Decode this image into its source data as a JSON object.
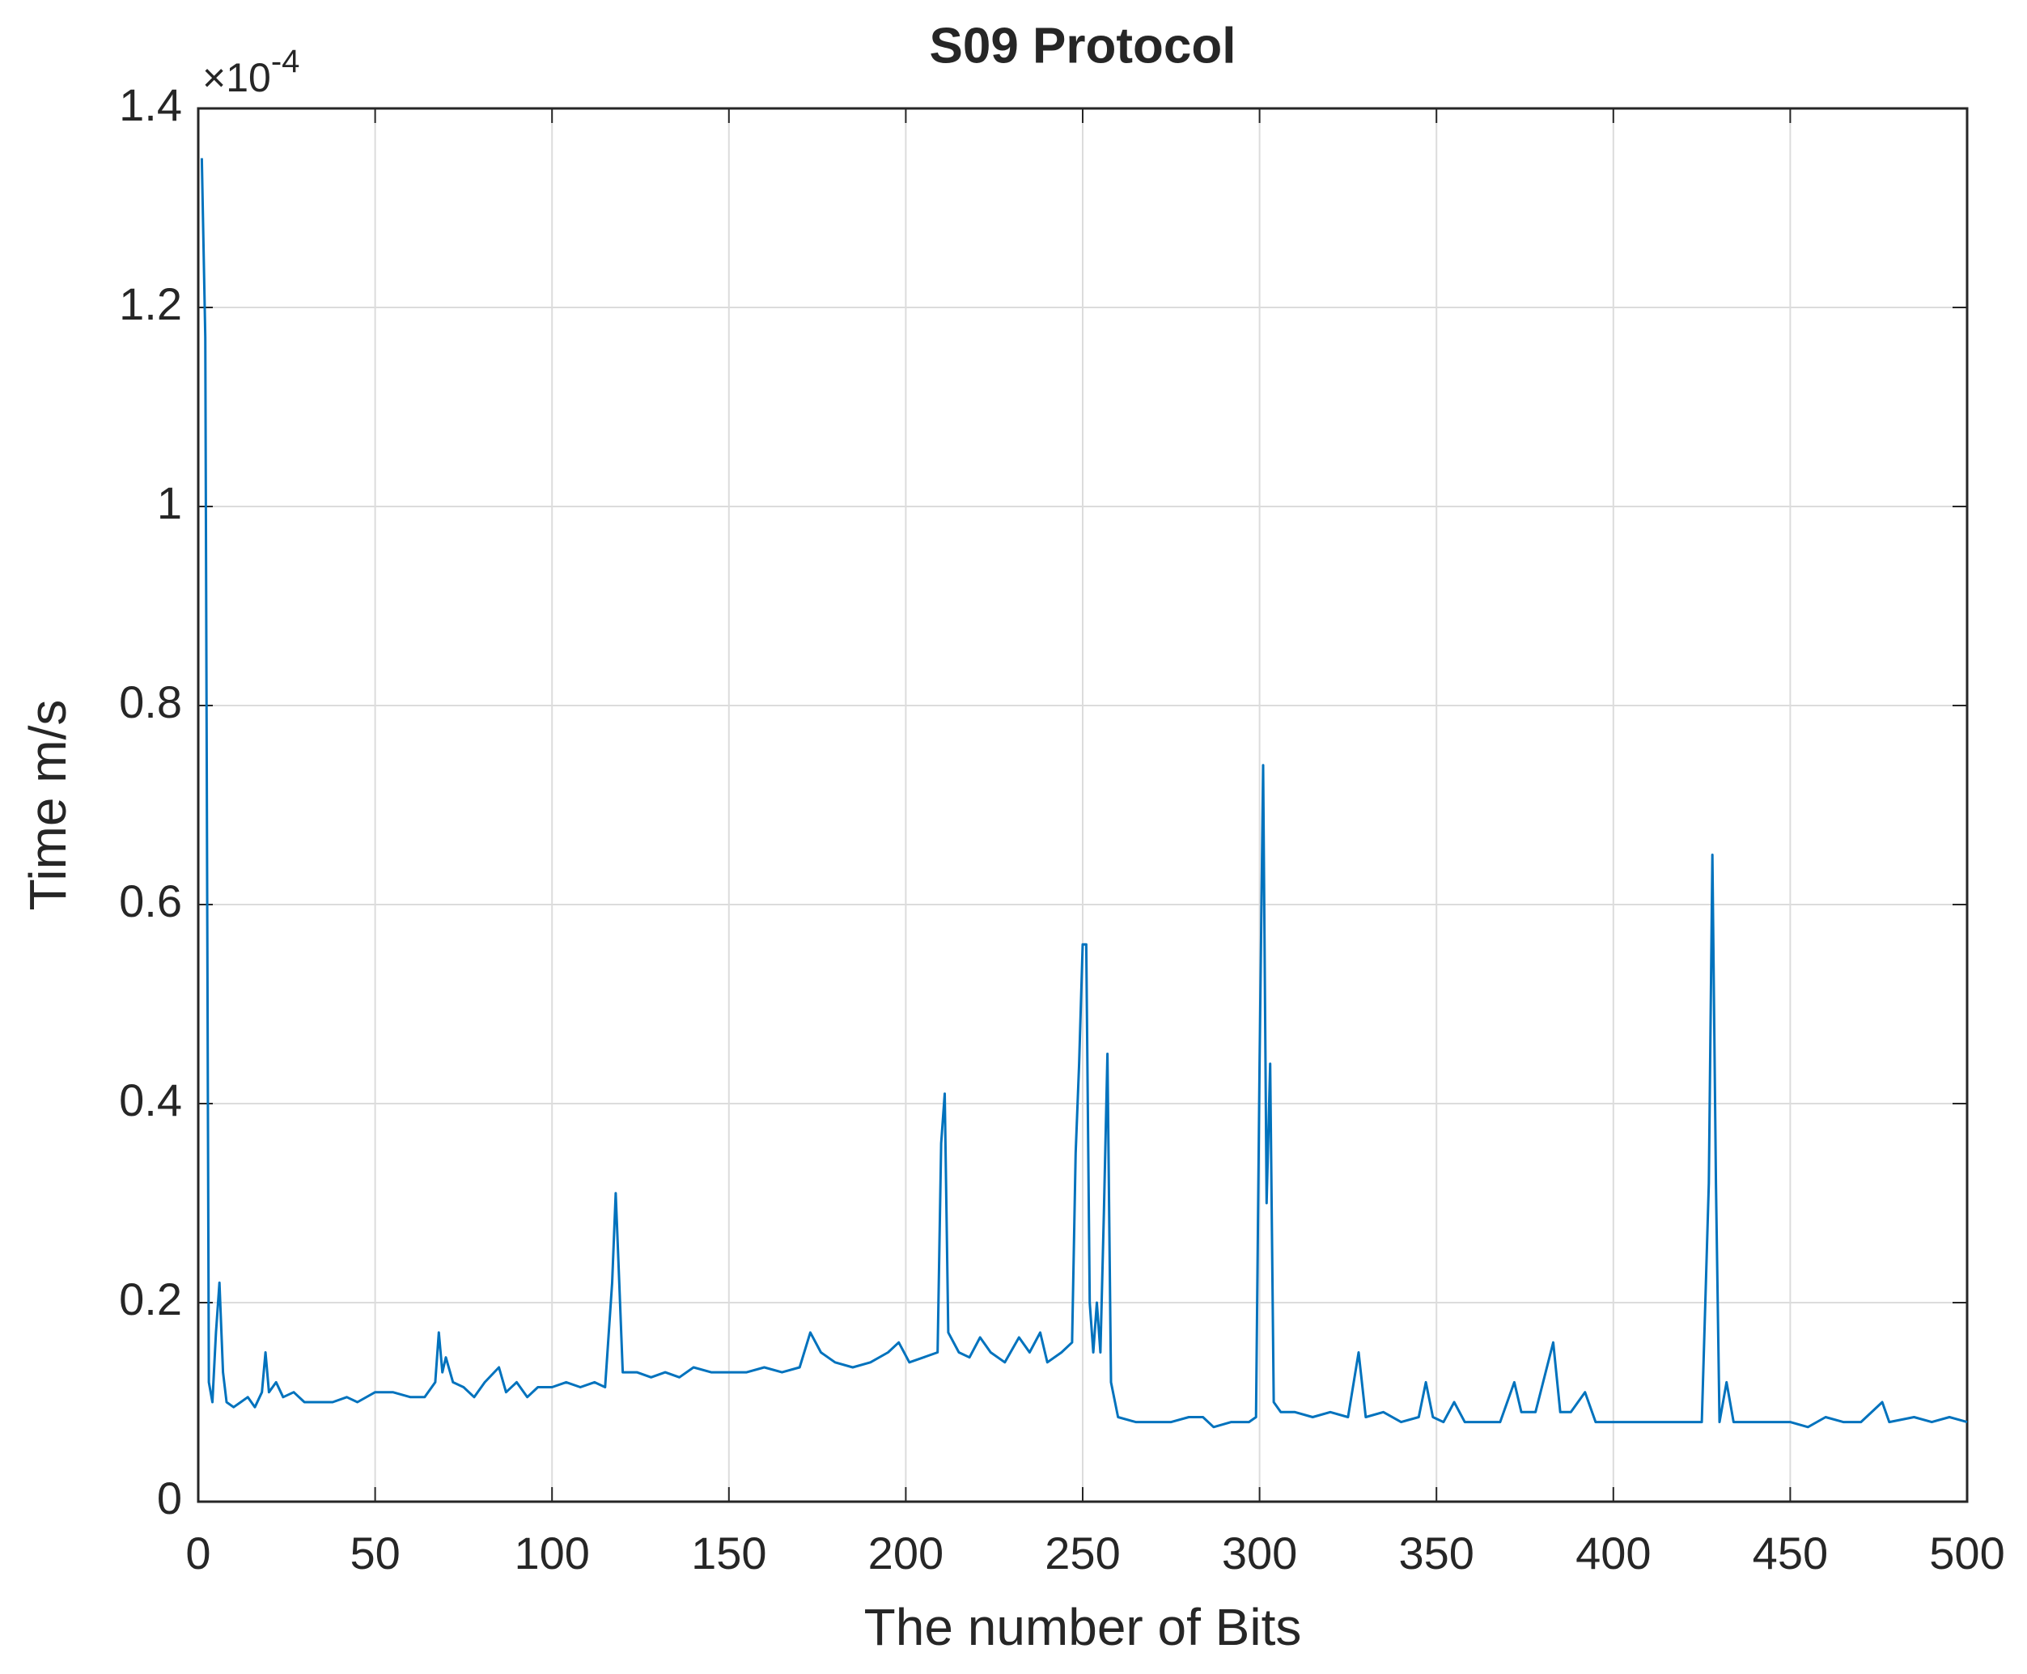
{
  "chart_data": {
    "type": "line",
    "title": "S09 Protocol",
    "x_label": "The number of Bits",
    "y_label": "Time m/s",
    "y_multiplier": {
      "base": "×10",
      "exponent": "-4"
    },
    "xlim": [
      0,
      500
    ],
    "xticks": [
      0,
      50,
      100,
      150,
      200,
      250,
      300,
      350,
      400,
      450,
      500
    ],
    "ylim": [
      0,
      1.4
    ],
    "yticks": [
      0,
      0.2,
      0.4,
      0.6,
      0.8,
      1,
      1.2,
      1.4
    ],
    "grid": true,
    "x": [
      1,
      2,
      3,
      4,
      5,
      6,
      7,
      8,
      10,
      12,
      14,
      16,
      18,
      19,
      20,
      22,
      24,
      27,
      30,
      34,
      38,
      42,
      45,
      50,
      55,
      60,
      64,
      67,
      68,
      69,
      70,
      72,
      75,
      78,
      81,
      85,
      87,
      90,
      93,
      96,
      100,
      104,
      108,
      112,
      115,
      117,
      118,
      119,
      120,
      124,
      128,
      132,
      136,
      140,
      145,
      150,
      155,
      160,
      165,
      170,
      173,
      176,
      180,
      185,
      190,
      195,
      198,
      201,
      205,
      209,
      210,
      211,
      212,
      215,
      218,
      221,
      224,
      228,
      232,
      235,
      238,
      240,
      244,
      247,
      248,
      249,
      250,
      251,
      252,
      253,
      254,
      255,
      256,
      257,
      258,
      260,
      265,
      270,
      275,
      280,
      284,
      287,
      292,
      297,
      299,
      300,
      301,
      302,
      303,
      304,
      306,
      310,
      315,
      320,
      325,
      328,
      330,
      335,
      340,
      345,
      347,
      349,
      352,
      355,
      358,
      363,
      368,
      372,
      374,
      378,
      383,
      385,
      388,
      392,
      395,
      400,
      405,
      410,
      415,
      420,
      425,
      427,
      428,
      429,
      430,
      432,
      434,
      440,
      445,
      450,
      455,
      460,
      465,
      470,
      476,
      478,
      485,
      490,
      495,
      500
    ],
    "series": [
      {
        "color": "#0072bd",
        "values": [
          1.35,
          1.17,
          0.12,
          0.1,
          0.17,
          0.22,
          0.13,
          0.1,
          0.095,
          0.1,
          0.105,
          0.095,
          0.11,
          0.15,
          0.11,
          0.12,
          0.105,
          0.11,
          0.1,
          0.1,
          0.1,
          0.105,
          0.1,
          0.11,
          0.11,
          0.105,
          0.105,
          0.12,
          0.17,
          0.13,
          0.145,
          0.12,
          0.115,
          0.105,
          0.12,
          0.135,
          0.11,
          0.12,
          0.105,
          0.115,
          0.115,
          0.12,
          0.115,
          0.12,
          0.115,
          0.22,
          0.31,
          0.22,
          0.13,
          0.13,
          0.125,
          0.13,
          0.125,
          0.135,
          0.13,
          0.13,
          0.13,
          0.135,
          0.13,
          0.135,
          0.17,
          0.15,
          0.14,
          0.135,
          0.14,
          0.15,
          0.16,
          0.14,
          0.145,
          0.15,
          0.36,
          0.41,
          0.17,
          0.15,
          0.145,
          0.165,
          0.15,
          0.14,
          0.165,
          0.15,
          0.17,
          0.14,
          0.15,
          0.16,
          0.35,
          0.44,
          0.56,
          0.56,
          0.2,
          0.15,
          0.2,
          0.15,
          0.29,
          0.45,
          0.12,
          0.085,
          0.08,
          0.08,
          0.08,
          0.085,
          0.085,
          0.075,
          0.08,
          0.08,
          0.085,
          0.44,
          0.74,
          0.3,
          0.44,
          0.1,
          0.09,
          0.09,
          0.085,
          0.09,
          0.085,
          0.15,
          0.085,
          0.09,
          0.08,
          0.085,
          0.12,
          0.085,
          0.08,
          0.1,
          0.08,
          0.08,
          0.08,
          0.12,
          0.09,
          0.09,
          0.16,
          0.09,
          0.09,
          0.11,
          0.08,
          0.08,
          0.08,
          0.08,
          0.08,
          0.08,
          0.08,
          0.32,
          0.65,
          0.32,
          0.08,
          0.12,
          0.08,
          0.08,
          0.08,
          0.08,
          0.075,
          0.085,
          0.08,
          0.08,
          0.1,
          0.08,
          0.085,
          0.08,
          0.085,
          0.08
        ]
      }
    ]
  }
}
